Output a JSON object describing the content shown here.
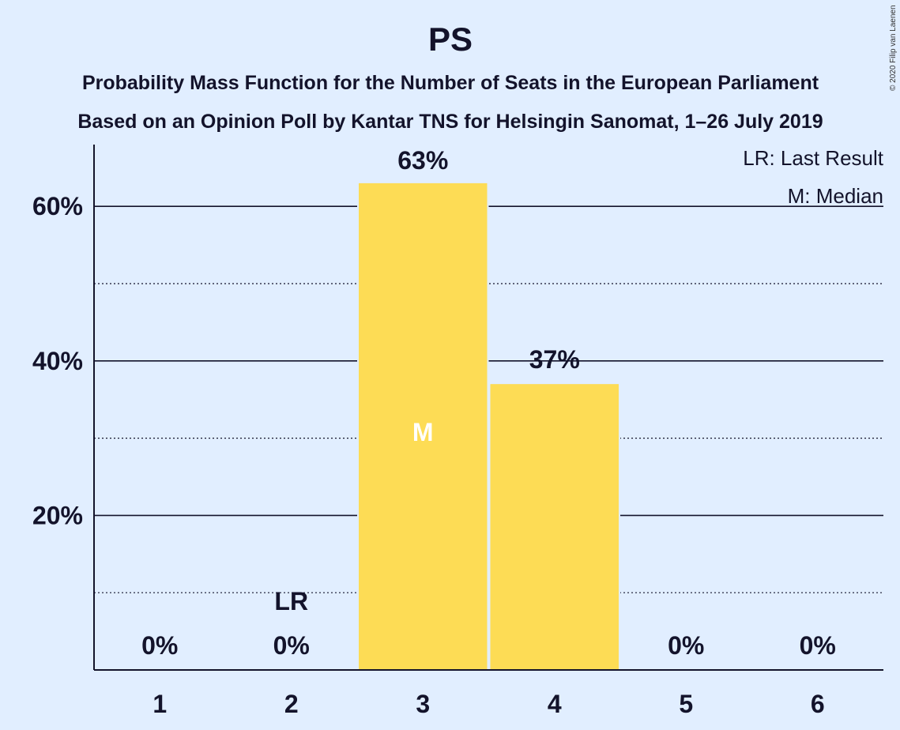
{
  "copyright": "© 2020 Filip van Laenen",
  "chart_data": {
    "type": "bar",
    "title": "PS",
    "subtitle_lines": [
      "Probability Mass Function for the Number of Seats in the European Parliament",
      "Based on an Opinion Poll by Kantar TNS for Helsingin Sanomat, 1–26 July 2019"
    ],
    "categories": [
      "1",
      "2",
      "3",
      "4",
      "5",
      "6"
    ],
    "values": [
      0,
      0,
      63,
      37,
      0,
      0
    ],
    "value_labels": [
      "0%",
      "0%",
      "63%",
      "37%",
      "0%",
      "0%"
    ],
    "ylim": [
      0,
      68
    ],
    "y_major_ticks": [
      20,
      40,
      60
    ],
    "y_tick_labels": [
      "20%",
      "40%",
      "60%"
    ],
    "y_minor_ticks": [
      10,
      30,
      50
    ],
    "bar_color": "#fddc55",
    "last_result_category": "2",
    "last_result_mark": "LR",
    "median_category": "3",
    "median_mark": "M",
    "legend_position": "top-right",
    "legend": [
      "LR: Last Result",
      "M: Median"
    ]
  }
}
